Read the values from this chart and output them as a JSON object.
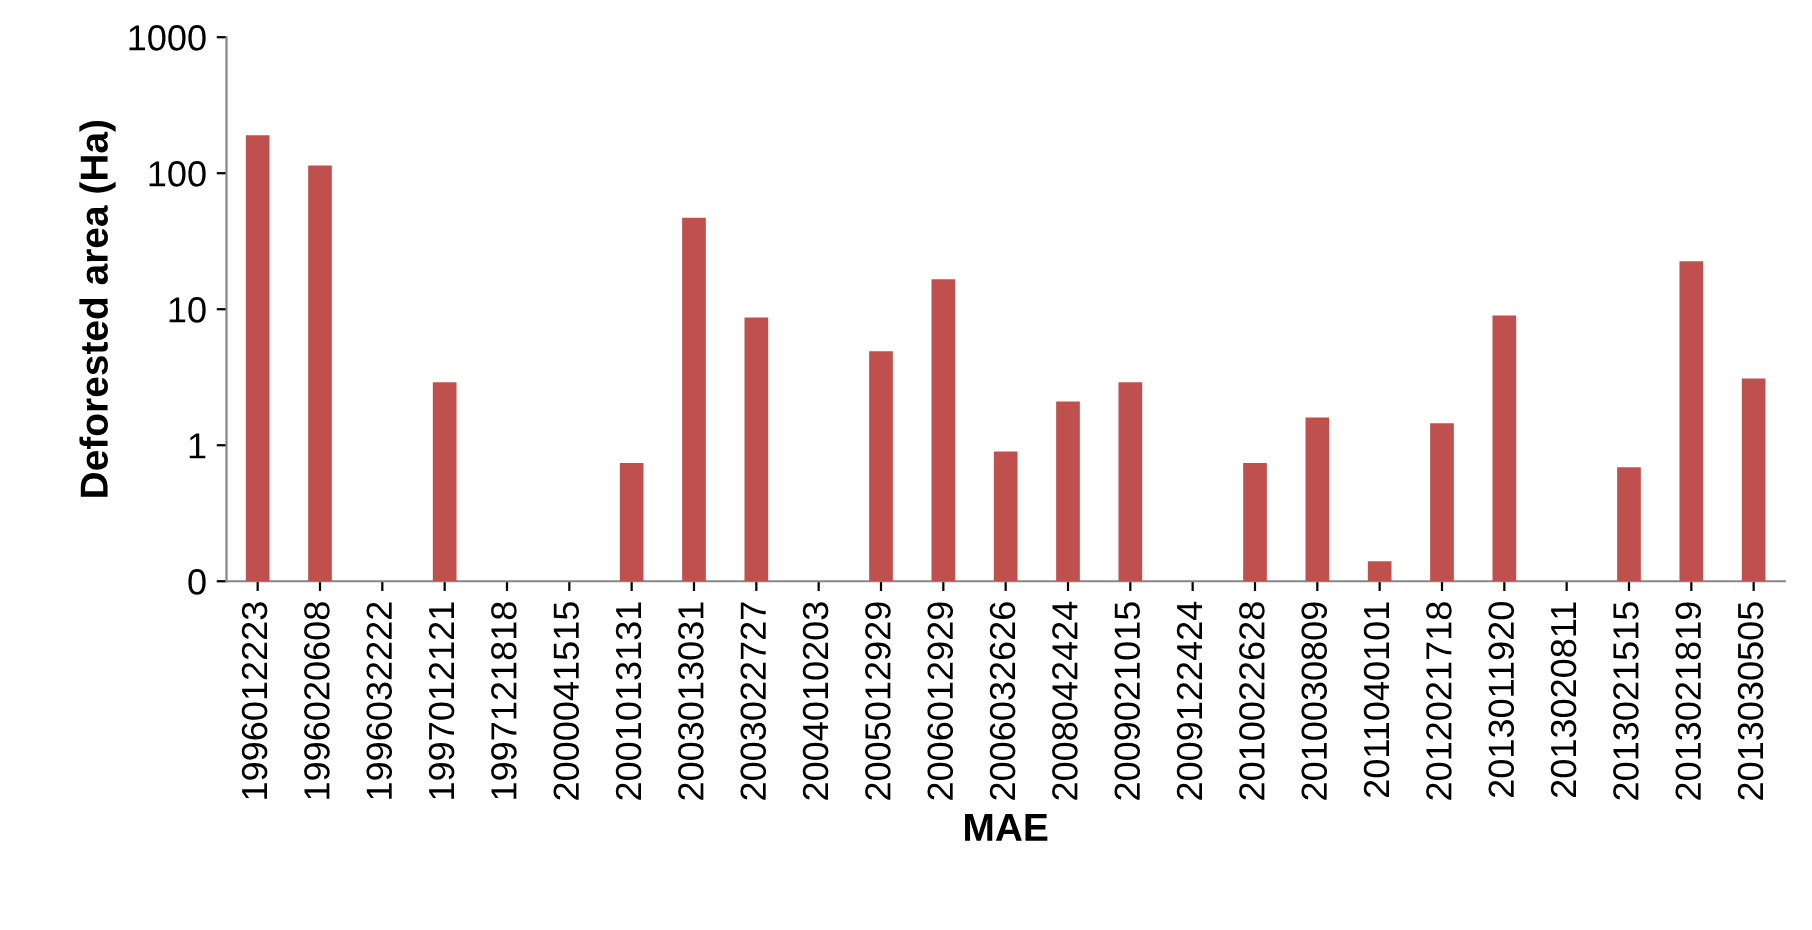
{
  "chart_data": {
    "type": "bar",
    "xlabel": "MAE",
    "ylabel": "Deforested area (Ha)",
    "categories": [
      "1996012223",
      "1996020608",
      "1996032222",
      "1997012121",
      "1997121818",
      "2000041515",
      "2001013131",
      "2003013031",
      "2003022727",
      "2004010203",
      "2005012929",
      "2006012929",
      "2006032626",
      "2008042424",
      "2009021015",
      "2009122424",
      "2010022628",
      "2010030809",
      "2011040101",
      "2012021718",
      "2013011920",
      "2013020811",
      "2013021515",
      "2013021819",
      "2013030505"
    ],
    "values": [
      190,
      114,
      null,
      2.9,
      null,
      null,
      0.74,
      47,
      8.7,
      null,
      4.9,
      16.6,
      0.9,
      2.1,
      2.9,
      null,
      0.74,
      1.6,
      0.14,
      1.45,
      9.0,
      null,
      0.69,
      22.5,
      3.1
    ],
    "color": "#c0504d",
    "log": "y",
    "ylim": [
      0.1,
      1000
    ],
    "yticks": [
      {
        "value": 0.1,
        "label": "0"
      },
      1,
      10,
      100,
      1000
    ],
    "grid": false
  }
}
